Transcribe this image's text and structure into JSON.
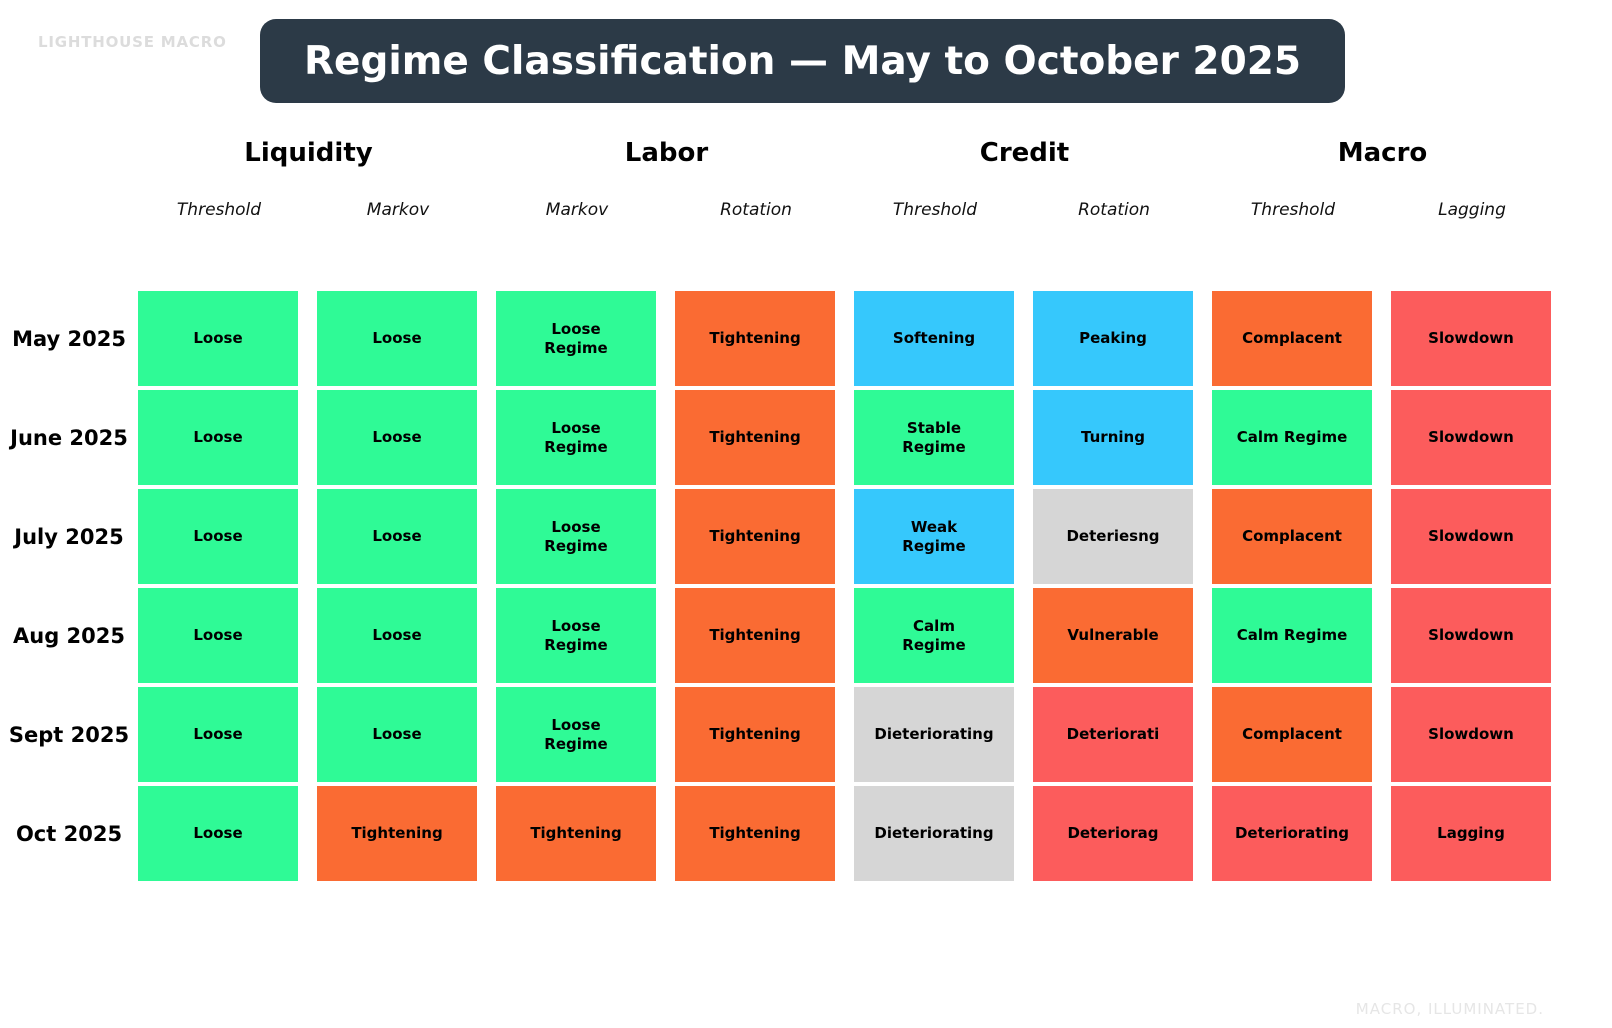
{
  "branding": {
    "top_left": "LIGHTHOUSE MACRO",
    "bottom_right": "MACRO, ILLUMINATED."
  },
  "title": "Regime Classification — May to October 2025",
  "colors": {
    "title_bg": "#2c3a47",
    "green": "#2ffa96",
    "orange": "#fa6b33",
    "blue": "#36c8fc",
    "red": "#fc5c5c",
    "gray": "#d6d6d6"
  },
  "chart_data": {
    "type": "table",
    "title": "Regime Classification — May to October 2025",
    "legend_position": "none",
    "groups": [
      {
        "label": "Liquidity",
        "sub": [
          "Threshold",
          "Markov"
        ]
      },
      {
        "label": "Labor",
        "sub": [
          "Markov",
          "Rotation"
        ]
      },
      {
        "label": "Credit",
        "sub": [
          "Threshold",
          "Rotation"
        ]
      },
      {
        "label": "Macro",
        "sub": [
          "Threshold",
          "Lagging"
        ]
      }
    ],
    "columns": [
      "Liquidity Threshold",
      "Liquidity Markov",
      "Labor Markov",
      "Labor Rotation",
      "Credit Threshold",
      "Credit Rotation",
      "Macro Threshold",
      "Macro Lagging"
    ],
    "rows": [
      {
        "label": "May 2025",
        "cells": [
          {
            "text": "Loose",
            "color": "green"
          },
          {
            "text": "Loose",
            "color": "green"
          },
          {
            "text": "Loose\nRegime",
            "color": "green"
          },
          {
            "text": "Tightening",
            "color": "orange"
          },
          {
            "text": "Softening",
            "color": "blue"
          },
          {
            "text": "Peaking",
            "color": "blue"
          },
          {
            "text": "Complacent",
            "color": "orange"
          },
          {
            "text": "Slowdown",
            "color": "red"
          }
        ]
      },
      {
        "label": "June 2025",
        "cells": [
          {
            "text": "Loose",
            "color": "green"
          },
          {
            "text": "Loose",
            "color": "green"
          },
          {
            "text": "Loose\nRegime",
            "color": "green"
          },
          {
            "text": "Tightening",
            "color": "orange"
          },
          {
            "text": "Stable\nRegime",
            "color": "green"
          },
          {
            "text": "Turning",
            "color": "blue"
          },
          {
            "text": "Calm Regime",
            "color": "green"
          },
          {
            "text": "Slowdown",
            "color": "red"
          }
        ]
      },
      {
        "label": "July 2025",
        "cells": [
          {
            "text": "Loose",
            "color": "green"
          },
          {
            "text": "Loose",
            "color": "green"
          },
          {
            "text": "Loose\nRegime",
            "color": "green"
          },
          {
            "text": "Tightening",
            "color": "orange"
          },
          {
            "text": "Weak\nRegime",
            "color": "blue"
          },
          {
            "text": "Deteriesng",
            "color": "gray"
          },
          {
            "text": "Complacent",
            "color": "orange"
          },
          {
            "text": "Slowdown",
            "color": "red"
          }
        ]
      },
      {
        "label": "Aug 2025",
        "cells": [
          {
            "text": "Loose",
            "color": "green"
          },
          {
            "text": "Loose",
            "color": "green"
          },
          {
            "text": "Loose\nRegime",
            "color": "green"
          },
          {
            "text": "Tightening",
            "color": "orange"
          },
          {
            "text": "Calm\nRegime",
            "color": "green"
          },
          {
            "text": "Vulnerable",
            "color": "orange"
          },
          {
            "text": "Calm Regime",
            "color": "green"
          },
          {
            "text": "Slowdown",
            "color": "red"
          }
        ]
      },
      {
        "label": "Sept 2025",
        "cells": [
          {
            "text": "Loose",
            "color": "green"
          },
          {
            "text": "Loose",
            "color": "green"
          },
          {
            "text": "Loose\nRegime",
            "color": "green"
          },
          {
            "text": "Tightening",
            "color": "orange"
          },
          {
            "text": "Dieteriorating",
            "color": "gray"
          },
          {
            "text": "Deteriorati",
            "color": "red"
          },
          {
            "text": "Complacent",
            "color": "orange"
          },
          {
            "text": "Slowdown",
            "color": "red"
          }
        ]
      },
      {
        "label": "Oct 2025",
        "cells": [
          {
            "text": "Loose",
            "color": "green"
          },
          {
            "text": "Tightening",
            "color": "orange"
          },
          {
            "text": "Tightening",
            "color": "orange"
          },
          {
            "text": "Tightening",
            "color": "orange"
          },
          {
            "text": "Dieteriorating",
            "color": "gray"
          },
          {
            "text": "Deteriorag",
            "color": "red"
          },
          {
            "text": "Deteriorating",
            "color": "red"
          },
          {
            "text": "Lagging",
            "color": "red"
          }
        ]
      }
    ]
  }
}
